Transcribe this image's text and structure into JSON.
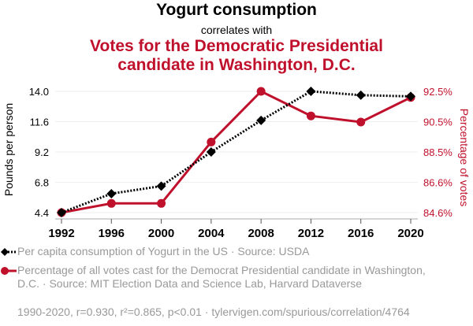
{
  "title": "Yogurt consumption",
  "subtitle": "correlates with",
  "title2_line1": "Votes for the Democratic Presidential",
  "title2_line2": "candidate in Washington, D.C.",
  "colors": {
    "series1": "#000000",
    "series2": "#c0112c",
    "grid": "#eeeeee",
    "legend_text": "#999999"
  },
  "legend": [
    {
      "icon": "black-diamond-dotted-line-icon",
      "text": "Per capita consumption of Yogurt in the US · Source: USDA"
    },
    {
      "icon": "red-circle-line-icon",
      "text": "Percentage of all votes cast for the Democrat Presidential candidate in Washington, D.C. · Source: MIT Election Data and Science Lab, Harvard Dataverse"
    }
  ],
  "footer": "1990-2020, r=0.930, r²=0.865, p<0.01 · tylervigen.com/spurious/correlation/4764",
  "chart_data": {
    "type": "line",
    "title": "Yogurt consumption correlates with Votes for the Democratic Presidential candidate in Washington, D.C.",
    "x": [
      1992,
      1996,
      2000,
      2004,
      2008,
      2012,
      2016,
      2020
    ],
    "xticks": [
      "1992",
      "1996",
      "2000",
      "2004",
      "2008",
      "2012",
      "2016",
      "2020"
    ],
    "xlim": [
      1992,
      2020
    ],
    "ylabel_left": "Pounds per person",
    "ylabel_right": "Percentage of votes",
    "ylim_left": [
      4.4,
      14.0
    ],
    "ylim_right": [
      84.6,
      92.5
    ],
    "yticks_left": [
      "4.4",
      "6.8",
      "9.2",
      "11.6",
      "14.0"
    ],
    "yticks_left_values": [
      4.4,
      6.8,
      9.2,
      11.6,
      14.0
    ],
    "yticks_right": [
      "84.6%",
      "86.6%",
      "88.5%",
      "90.5%",
      "92.5%"
    ],
    "yticks_right_values": [
      84.6,
      86.575,
      88.55,
      90.525,
      92.5
    ],
    "grid": true,
    "legend_position": "bottom",
    "series": [
      {
        "name": "Per capita consumption of Yogurt in the US",
        "axis": "left",
        "marker": "diamond",
        "line": "dotted",
        "values": [
          4.4,
          5.9,
          6.5,
          9.2,
          11.7,
          14.0,
          13.7,
          13.6
        ]
      },
      {
        "name": "Percentage of all votes cast for the Democrat Presidential candidate in Washington, D.C.",
        "axis": "right",
        "marker": "circle",
        "line": "solid",
        "values": [
          84.6,
          85.2,
          85.2,
          89.2,
          92.5,
          90.9,
          90.5,
          92.1
        ]
      }
    ]
  }
}
